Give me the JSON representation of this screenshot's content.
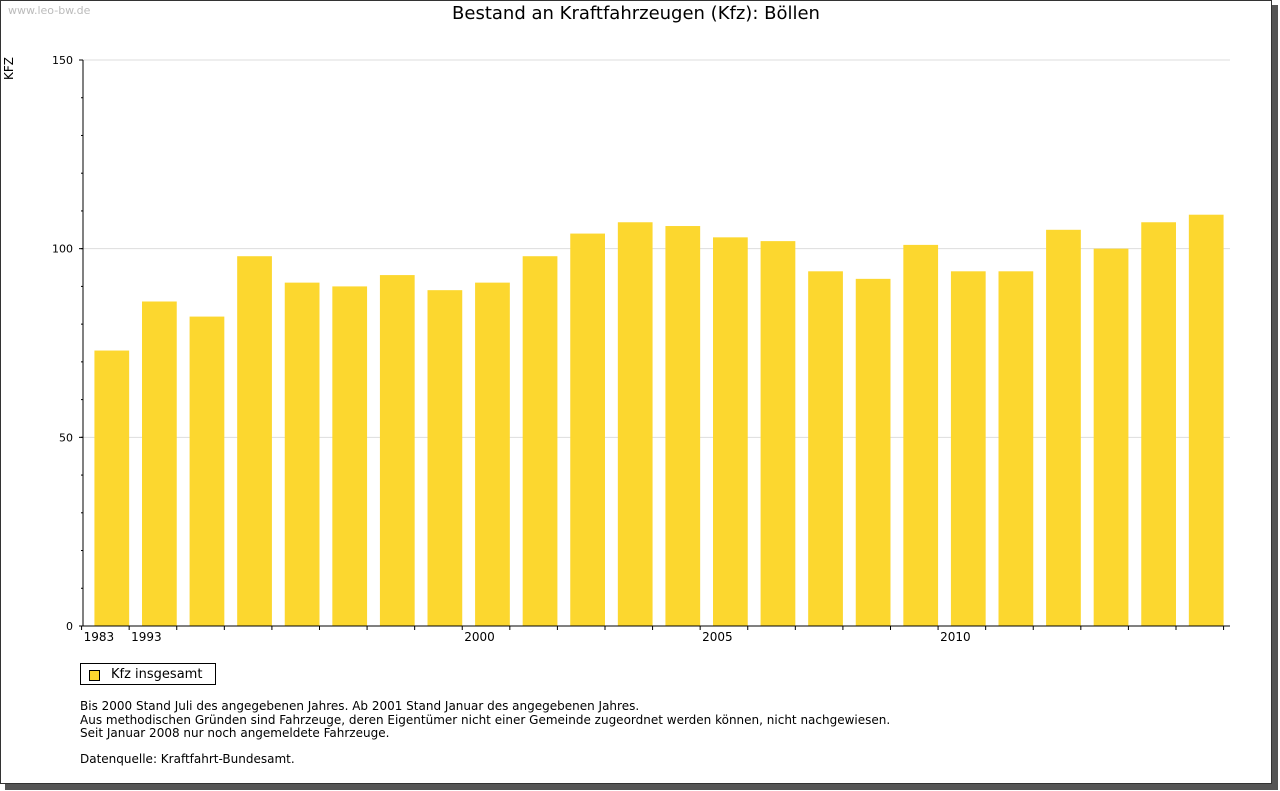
{
  "watermark": "www.leo-bw.de",
  "colors": {
    "bar": "#fcd72f",
    "axis": "#000000",
    "grid": "#dddddd"
  },
  "chart_data": {
    "type": "bar",
    "title": "Bestand an Kraftfahrzeugen (Kfz): Böllen",
    "ylabel": "KFZ",
    "xlabel": "",
    "ylim": [
      0,
      150
    ],
    "yticks": [
      0,
      50,
      100,
      150
    ],
    "years": [
      1983,
      1993,
      1994,
      1995,
      1996,
      1997,
      1998,
      1999,
      2000,
      2001,
      2002,
      2003,
      2004,
      2005,
      2006,
      2007,
      2008,
      2009,
      2010,
      2011,
      2012,
      2013,
      2014,
      2015
    ],
    "xtick_labels": [
      "1983",
      "1993",
      "2000",
      "2005",
      "2010"
    ],
    "series": [
      {
        "name": "Kfz insgesamt",
        "values": [
          73,
          86,
          82,
          98,
          91,
          90,
          93,
          89,
          91,
          98,
          104,
          107,
          106,
          103,
          102,
          94,
          92,
          101,
          94,
          94,
          105,
          100,
          107,
          109
        ]
      }
    ],
    "legend": "bottom-left"
  },
  "legend": {
    "label": "Kfz insgesamt"
  },
  "notes": [
    "Bis 2000 Stand Juli des angegebenen Jahres. Ab 2001 Stand Januar des angegebenen Jahres.",
    "Aus methodischen Gründen sind Fahrzeuge, deren Eigentümer nicht einer Gemeinde zugeordnet werden können, nicht nachgewiesen.",
    "Seit Januar 2008 nur noch angemeldete Fahrzeuge."
  ],
  "source": "Datenquelle: Kraftfahrt-Bundesamt."
}
